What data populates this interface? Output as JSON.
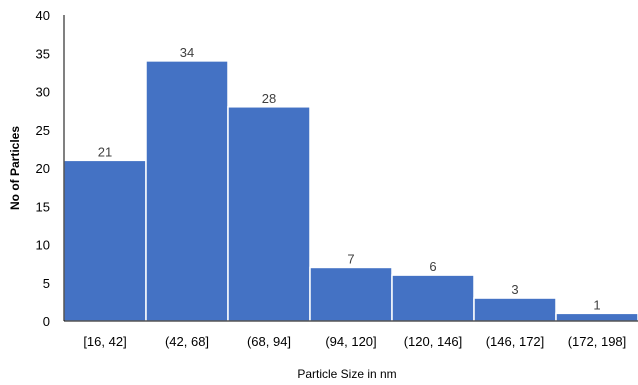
{
  "chart_data": {
    "type": "bar",
    "categories": [
      "[16, 42]",
      "(42, 68]",
      "(68, 94]",
      "(94, 120]",
      "(120, 146]",
      "(146, 172]",
      "(172, 198]"
    ],
    "values": [
      21,
      34,
      28,
      7,
      6,
      3,
      1
    ],
    "title": "",
    "xlabel": "Particle Size in nm",
    "ylabel": "No of Particles",
    "ylim": [
      0,
      40
    ],
    "yticks": [
      0,
      5,
      10,
      15,
      20,
      25,
      30,
      35,
      40
    ],
    "grid": false,
    "bar_color": "#4472C4",
    "bar_edge_color": "#ffffff"
  }
}
